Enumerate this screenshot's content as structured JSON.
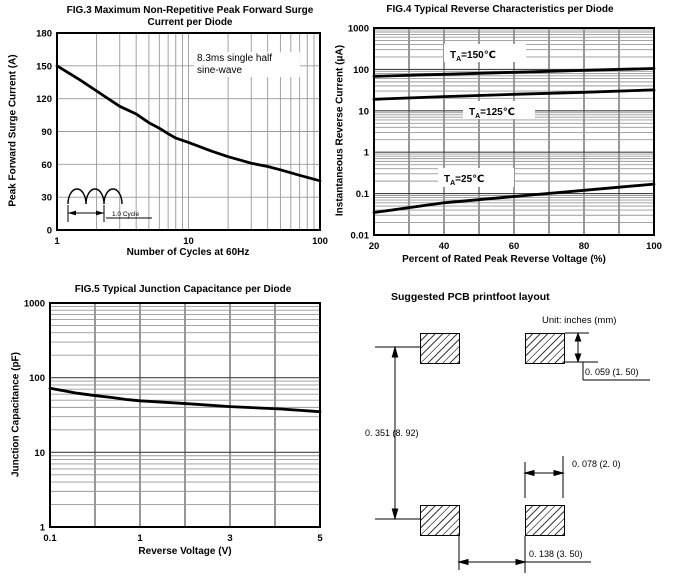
{
  "page": {
    "background": "#ffffff",
    "text_color": "#000000",
    "grid_minor_color": "#999999",
    "grid_major_color": "#444444",
    "curve_color": "#000000"
  },
  "figures": {
    "fig3": {
      "title_line1": "FIG.3 Maximum Non-Repetitive Peak Forward Surge",
      "title_line2": "Current per Diode",
      "xlabel": "Number of Cycles at 60Hz",
      "ylabel": "Peak Forward Surge Current (A)",
      "note_line1": "8.3ms single half",
      "note_line2": "sine-wave"
    },
    "fig4": {
      "title": "FIG.4 Typical Reverse Characteristics per Diode",
      "xlabel": "Percent of Rated Peak Reverse Voltage (%)",
      "ylabel": "Instantaneous Reverse Current (μA)"
    },
    "fig5": {
      "title": "FIG.5 Typical Junction Capacitance per Diode",
      "xlabel": "Reverse Voltage (V)",
      "ylabel": "Junction Capacitance (pF)"
    },
    "pcb": {
      "title": "Suggested PCB printfoot layout",
      "unit_note": "Unit: inches (mm)",
      "dim_vertical_pitch": "0. 351 (8. 92)",
      "dim_pad_height": "0. 059 (1. 50)",
      "dim_pad_width": "0. 078 (2. 0)",
      "dim_pad_gap": "0. 138 (3. 50)"
    }
  },
  "chart_data": [
    {
      "id": "fig3",
      "type": "line",
      "title": "FIG.3 Maximum Non-Repetitive Peak Forward Surge Current per Diode",
      "xlabel": "Number of Cycles at 60Hz",
      "ylabel": "Peak Forward Surge Current (A)",
      "legend": "none",
      "x": {
        "scale": "log",
        "min": 1,
        "max": 100,
        "grid": "log",
        "ticks": [
          {
            "v": 1,
            "label": "1"
          },
          {
            "v": 10,
            "label": "10"
          },
          {
            "v": 100,
            "label": "100"
          }
        ]
      },
      "y": {
        "scale": "linear",
        "min": 0,
        "max": 180,
        "grid": {
          "major": [
            30,
            60,
            90,
            120,
            150
          ],
          "minor": []
        },
        "ticks": [
          {
            "v": 0,
            "label": "0"
          },
          {
            "v": 30,
            "label": "30"
          },
          {
            "v": 60,
            "label": "60"
          },
          {
            "v": 90,
            "label": "90"
          },
          {
            "v": 120,
            "label": "120"
          },
          {
            "v": 150,
            "label": "150"
          },
          {
            "v": 180,
            "label": "180"
          }
        ]
      },
      "series": [
        {
          "name": "peak-forward-surge-current",
          "points": [
            [
              1,
              150
            ],
            [
              1.5,
              137
            ],
            [
              2,
              127
            ],
            [
              3,
              113
            ],
            [
              4,
              106
            ],
            [
              5,
              98
            ],
            [
              6,
              93
            ],
            [
              7,
              88
            ],
            [
              8,
              84
            ],
            [
              10,
              80
            ],
            [
              15,
              72
            ],
            [
              20,
              67
            ],
            [
              30,
              61
            ],
            [
              40,
              58
            ],
            [
              50,
              55
            ],
            [
              70,
              50
            ],
            [
              100,
              45
            ]
          ]
        }
      ],
      "annotations": [
        {
          "id": "pulse-note",
          "lines": [
            "8.3ms single half",
            "sine-wave"
          ]
        },
        {
          "id": "cycle-inset",
          "label": "1.0 Cycle"
        }
      ]
    },
    {
      "id": "fig4",
      "type": "line",
      "title": "FIG.4 Typical Reverse Characteristics per Diode",
      "xlabel": "Percent of Rated Peak Reverse Voltage (%)",
      "ylabel": "Instantaneous Reverse Current (μA)",
      "legend": "none",
      "x": {
        "scale": "linear",
        "min": 20,
        "max": 100,
        "grid": {
          "major": [
            20,
            30,
            40,
            50,
            60,
            70,
            80,
            90,
            100
          ],
          "minor": []
        },
        "ticks": [
          {
            "v": 20,
            "label": "20"
          },
          {
            "v": 40,
            "label": "40"
          },
          {
            "v": 60,
            "label": "60"
          },
          {
            "v": 80,
            "label": "80"
          },
          {
            "v": 100,
            "label": "100"
          }
        ]
      },
      "y": {
        "scale": "log",
        "min": 0.01,
        "max": 1000,
        "grid": "log",
        "ticks": [
          {
            "v": 1000,
            "label": "1000"
          },
          {
            "v": 100,
            "label": "100"
          },
          {
            "v": 10,
            "label": "10"
          },
          {
            "v": 1,
            "label": "1"
          },
          {
            "v": 0.1,
            "label": "0.1"
          },
          {
            "v": 0.01,
            "label": "0.01"
          }
        ]
      },
      "series": [
        {
          "name": "TA=150C",
          "points": [
            [
              20,
              68
            ],
            [
              40,
              76
            ],
            [
              60,
              85
            ],
            [
              80,
              95
            ],
            [
              100,
              105
            ]
          ]
        },
        {
          "name": "TA=125C",
          "points": [
            [
              20,
              19
            ],
            [
              40,
              22
            ],
            [
              60,
              25
            ],
            [
              80,
              28
            ],
            [
              100,
              32
            ]
          ]
        },
        {
          "name": "TA=25C",
          "points": [
            [
              20,
              0.035
            ],
            [
              40,
              0.06
            ],
            [
              60,
              0.085
            ],
            [
              80,
              0.12
            ],
            [
              100,
              0.17
            ]
          ]
        }
      ],
      "annotations": [
        {
          "id": "t150",
          "prefix": "T",
          "sub": "A",
          "suffix": "=150℃"
        },
        {
          "id": "t125",
          "prefix": "T",
          "sub": "A",
          "suffix": "=125℃"
        },
        {
          "id": "t25",
          "prefix": "T",
          "sub": "A",
          "suffix": "=25℃"
        }
      ]
    },
    {
      "id": "fig5",
      "type": "line",
      "title": "FIG.5 Typical Junction Capacitance per Diode",
      "xlabel": "Reverse Voltage (V)",
      "ylabel": "Junction Capacitance (pF)",
      "legend": "none",
      "x": {
        "scale": "segmented-log",
        "min": 0.1,
        "max": 5,
        "segments": [
          [
            0.1,
            1
          ],
          [
            1,
            3
          ],
          [
            3,
            5
          ]
        ],
        "grid": {
          "major": [
            0.1,
            0.3162,
            1,
            1.7321,
            3,
            3.873,
            5
          ],
          "minor": []
        },
        "ticks": [
          {
            "v": 0.1,
            "label": "0.1"
          },
          {
            "v": 1,
            "label": "1"
          },
          {
            "v": 3,
            "label": "3"
          },
          {
            "v": 5,
            "label": "5"
          }
        ]
      },
      "y": {
        "scale": "log",
        "min": 1,
        "max": 1000,
        "grid": "log",
        "ticks": [
          {
            "v": 1000,
            "label": "1000"
          },
          {
            "v": 100,
            "label": "100"
          },
          {
            "v": 10,
            "label": "10"
          },
          {
            "v": 1,
            "label": "1"
          }
        ]
      },
      "series": [
        {
          "name": "junction-capacitance",
          "points": [
            [
              0.1,
              72
            ],
            [
              0.15,
              66
            ],
            [
              0.2,
              62
            ],
            [
              0.3,
              58
            ],
            [
              0.5,
              54
            ],
            [
              0.7,
              51
            ],
            [
              1,
              49
            ],
            [
              1.5,
              46
            ],
            [
              2,
              44
            ],
            [
              3,
              41
            ],
            [
              4,
              38
            ],
            [
              5,
              35
            ]
          ]
        }
      ],
      "annotations": []
    }
  ]
}
